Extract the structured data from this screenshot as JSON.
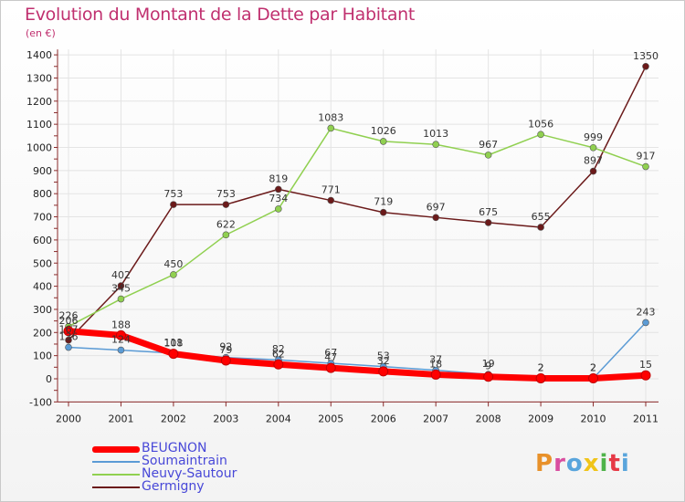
{
  "header": {
    "title": "Evolution du Montant de la Dette par Habitant",
    "subtitle": "(en €)"
  },
  "logo": {
    "text": "Proxiti",
    "colors": [
      "#e8912a",
      "#d94ea0",
      "#59a5dc",
      "#f0c419",
      "#4fb34a",
      "#e63946",
      "#59a5dc"
    ]
  },
  "chart_data": {
    "type": "line",
    "title": "Evolution du Montant de la Dette par Habitant",
    "subtitle": "(en €)",
    "x": [
      "2000",
      "2001",
      "2002",
      "2003",
      "2004",
      "2005",
      "2006",
      "2007",
      "2008",
      "2009",
      "2010",
      "2011"
    ],
    "ylim": [
      -100,
      1400
    ],
    "yticks": [
      -100,
      0,
      100,
      200,
      300,
      400,
      500,
      600,
      700,
      800,
      900,
      1000,
      1100,
      1200,
      1300,
      1400
    ],
    "grid": true,
    "legend_position": "bottom-left",
    "series": [
      {
        "name": "BEUGNON",
        "color": "#ff0000",
        "values": [
          206,
          188,
          108,
          79,
          62,
          47,
          32,
          18,
          9,
          2,
          2,
          15
        ]
      },
      {
        "name": "Soumaintrain",
        "color": "#5b9bd5",
        "values": [
          136,
          124,
          111,
          92,
          82,
          67,
          53,
          37,
          19,
          2,
          2,
          243
        ]
      },
      {
        "name": "Neuvy-Sautour",
        "color": "#90d050",
        "values": [
          226,
          345,
          450,
          622,
          734,
          1083,
          1026,
          1013,
          967,
          1056,
          999,
          917
        ]
      },
      {
        "name": "Germigny",
        "color": "#6b1a1a",
        "values": [
          167,
          402,
          753,
          753,
          819,
          771,
          719,
          697,
          675,
          655,
          897,
          1350
        ]
      }
    ]
  }
}
